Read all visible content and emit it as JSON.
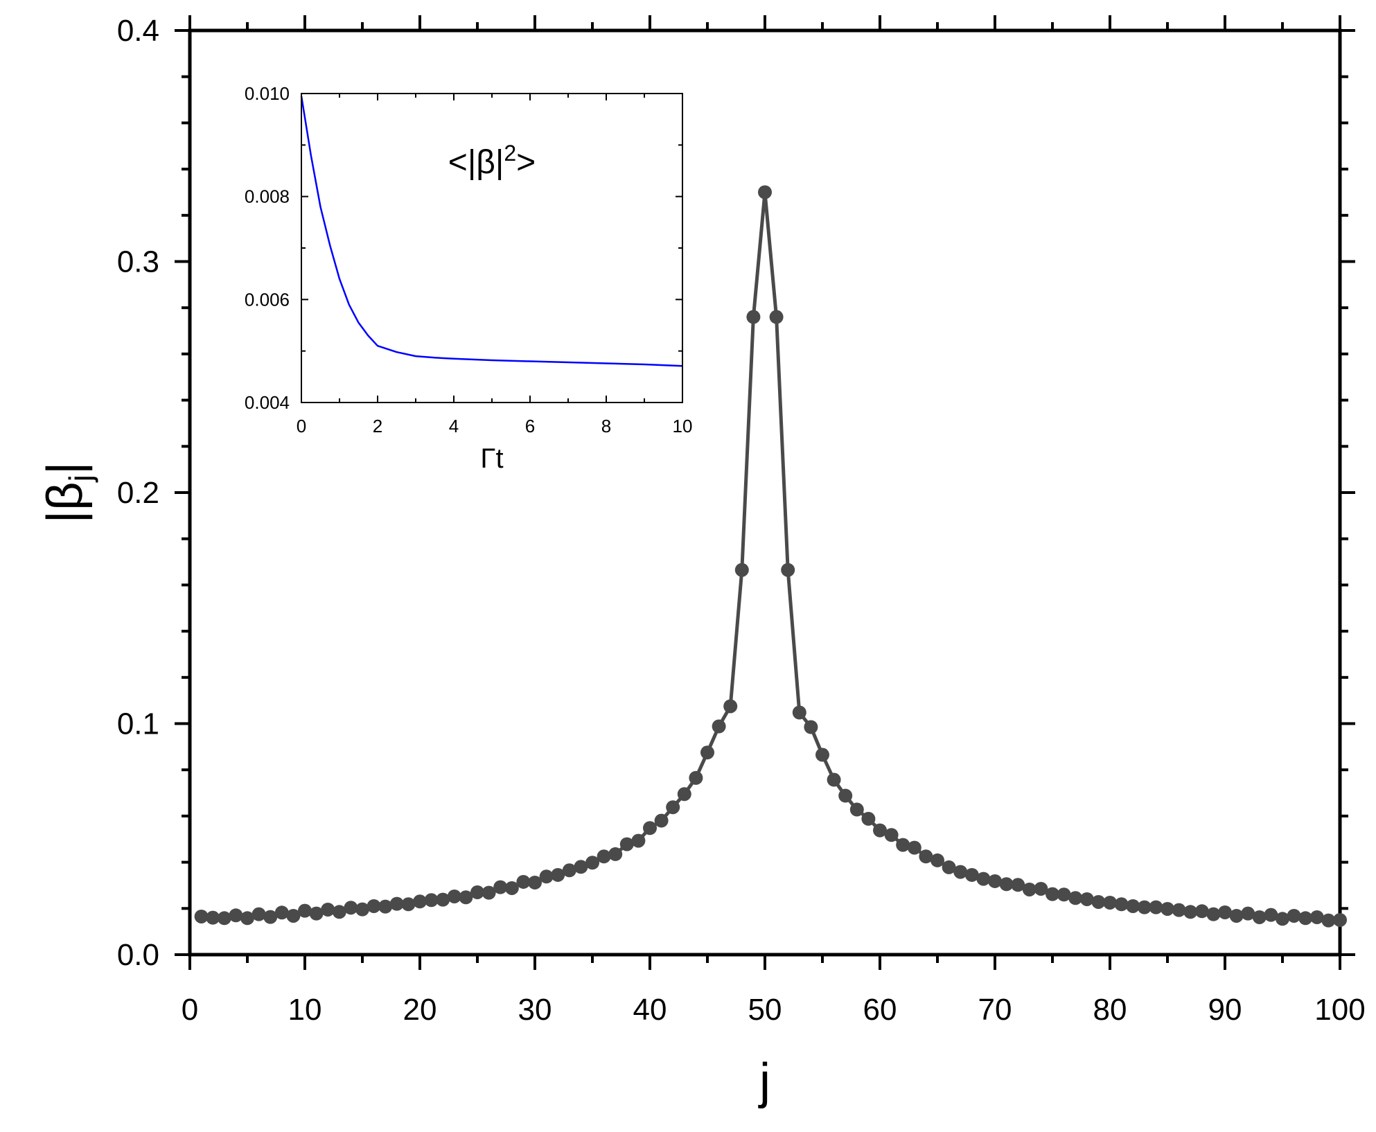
{
  "chart_data": [
    {
      "type": "line",
      "xlabel": "j",
      "ylabel": "|β_j|",
      "xlim": [
        0,
        100
      ],
      "ylim": [
        0,
        0.4
      ],
      "xticks": [
        "0",
        "10",
        "20",
        "30",
        "40",
        "50",
        "60",
        "70",
        "80",
        "90",
        "100"
      ],
      "yticks": [
        "0.0",
        "0.1",
        "0.2",
        "0.3",
        "0.4"
      ],
      "x": [
        1,
        2,
        3,
        4,
        5,
        6,
        7,
        8,
        9,
        10,
        11,
        12,
        13,
        14,
        15,
        16,
        17,
        18,
        19,
        20,
        21,
        22,
        23,
        24,
        25,
        26,
        27,
        28,
        29,
        30,
        31,
        32,
        33,
        34,
        35,
        36,
        37,
        38,
        39,
        40,
        41,
        42,
        43,
        44,
        45,
        46,
        47,
        48,
        49,
        50,
        51,
        52,
        53,
        54,
        55,
        56,
        57,
        58,
        59,
        60,
        61,
        62,
        63,
        64,
        65,
        66,
        67,
        68,
        69,
        70,
        71,
        72,
        73,
        74,
        75,
        76,
        77,
        78,
        79,
        80,
        81,
        82,
        83,
        84,
        85,
        86,
        87,
        88,
        89,
        90,
        91,
        92,
        93,
        94,
        95,
        96,
        97,
        98,
        99,
        100
      ],
      "series": [
        {
          "color": "#4a4a4a",
          "marker": "circle",
          "values": [
            0.0165,
            0.016,
            0.0158,
            0.017,
            0.0158,
            0.0175,
            0.0163,
            0.0182,
            0.0168,
            0.019,
            0.0178,
            0.0195,
            0.0185,
            0.0203,
            0.0196,
            0.021,
            0.0208,
            0.022,
            0.0218,
            0.023,
            0.0236,
            0.0238,
            0.0252,
            0.0248,
            0.027,
            0.0268,
            0.0292,
            0.0288,
            0.0315,
            0.0312,
            0.0338,
            0.0345,
            0.0365,
            0.038,
            0.0398,
            0.0425,
            0.0435,
            0.0478,
            0.0493,
            0.0548,
            0.058,
            0.0638,
            0.0695,
            0.0765,
            0.0875,
            0.0988,
            0.1075,
            0.1665,
            0.276,
            0.33,
            0.276,
            0.1665,
            0.1048,
            0.0985,
            0.0865,
            0.0757,
            0.0688,
            0.0628,
            0.0588,
            0.0538,
            0.0518,
            0.0475,
            0.0463,
            0.0425,
            0.0408,
            0.0378,
            0.0358,
            0.0345,
            0.0328,
            0.0318,
            0.0305,
            0.0302,
            0.0282,
            0.0285,
            0.0262,
            0.026,
            0.0245,
            0.024,
            0.0228,
            0.0225,
            0.0218,
            0.021,
            0.0205,
            0.0205,
            0.0198,
            0.0193,
            0.0185,
            0.0188,
            0.0175,
            0.0183,
            0.0168,
            0.0178,
            0.0162,
            0.0172,
            0.0155,
            0.0168,
            0.0158,
            0.0162,
            0.0148,
            0.015
          ]
        }
      ]
    },
    {
      "type": "line",
      "annotation": "<|β|²>",
      "xlabel": "Γt",
      "xlim": [
        0,
        10
      ],
      "ylim": [
        0.004,
        0.01
      ],
      "xticks": [
        "0",
        "2",
        "4",
        "6",
        "8",
        "10"
      ],
      "yticks": [
        "0.004",
        "0.006",
        "0.008",
        "0.010"
      ],
      "series": [
        {
          "color": "#0000ff",
          "x": [
            0,
            0.25,
            0.5,
            0.75,
            1,
            1.25,
            1.5,
            1.75,
            2,
            2.5,
            3,
            3.5,
            4,
            5,
            6,
            7,
            8,
            9,
            10
          ],
          "values": [
            0.00995,
            0.0088,
            0.0078,
            0.00705,
            0.0064,
            0.0059,
            0.00555,
            0.0053,
            0.0051,
            0.00498,
            0.0049,
            0.00487,
            0.00485,
            0.00482,
            0.0048,
            0.00478,
            0.00476,
            0.00474,
            0.00471
          ]
        }
      ]
    }
  ]
}
